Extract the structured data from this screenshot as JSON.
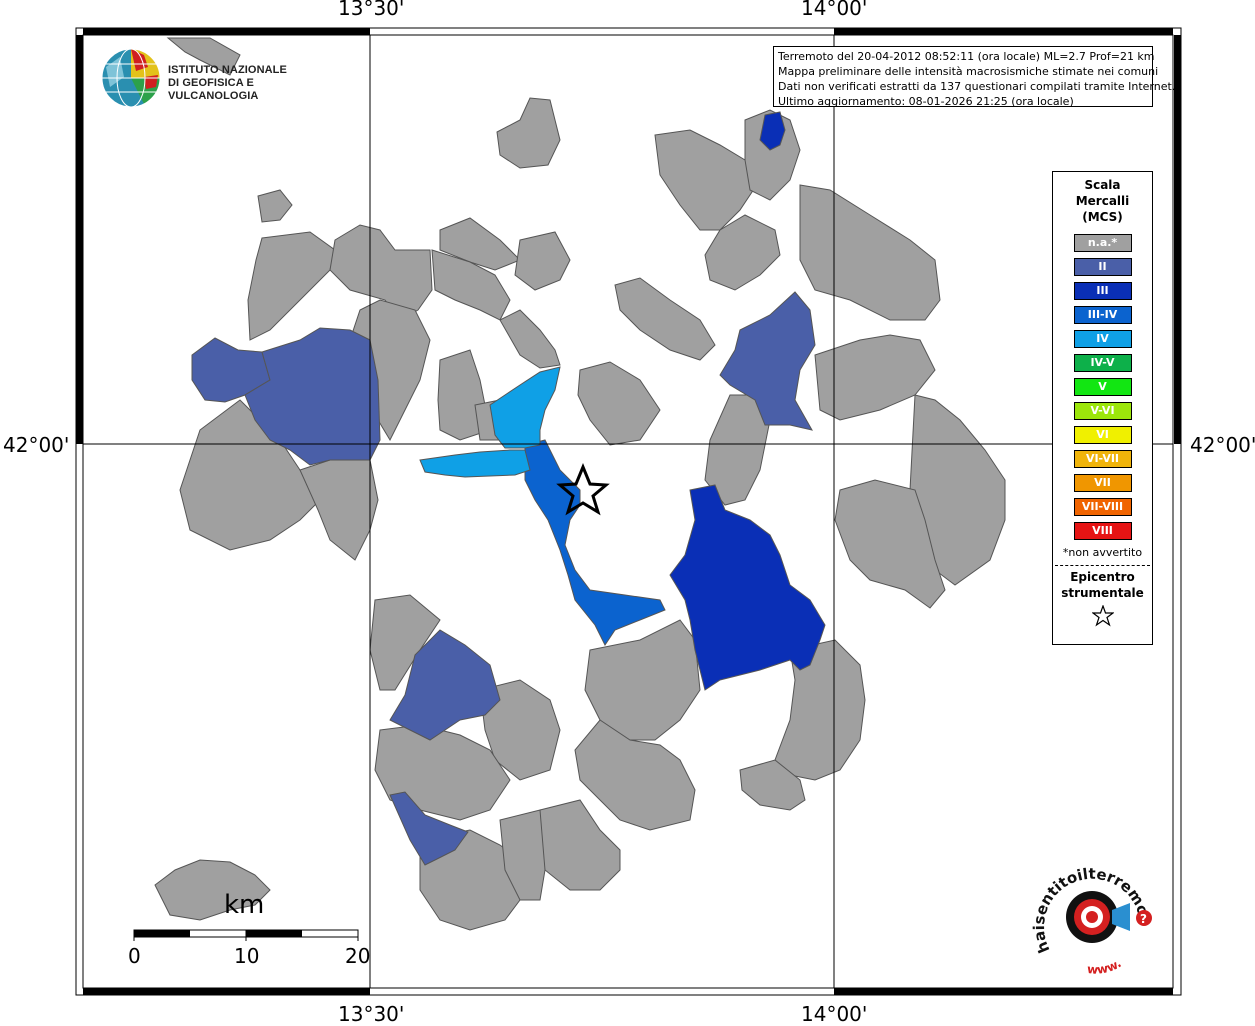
{
  "frame": {
    "top_labels": [
      "13°30'",
      "14°00'"
    ],
    "bottom_labels": [
      "13°30'",
      "14°00'"
    ],
    "left_label": "42°00'",
    "right_label": "42°00'"
  },
  "info": {
    "line1": "Terremoto del 20-04-2012 08:52:11 (ora locale) ML=2.7 Prof=21 km",
    "line2": "Mappa preliminare delle intensità macrosismiche stimate nei comuni",
    "line3": "Dati non verificati estratti da 137 questionari compilati tramite Internet.",
    "line4": "Ultimo aggiornamento: 08-01-2026 21:25 (ora locale)"
  },
  "institute": {
    "line1": "ISTITUTO NAZIONALE",
    "line2": "DI GEOFISICA E VULCANOLOGIA"
  },
  "legend": {
    "title1": "Scala",
    "title2": "Mercalli",
    "title3": "(MCS)",
    "items": [
      {
        "label": "n.a.*",
        "color": "#a0a0a0"
      },
      {
        "label": "II",
        "color": "#4a5fa8"
      },
      {
        "label": "III",
        "color": "#0a2fb6"
      },
      {
        "label": "III-IV",
        "color": "#0b63cf"
      },
      {
        "label": "IV",
        "color": "#0fa0e6"
      },
      {
        "label": "IV-V",
        "color": "#0db04a"
      },
      {
        "label": "V",
        "color": "#12e612"
      },
      {
        "label": "V-VI",
        "color": "#9ce60b"
      },
      {
        "label": "VI",
        "color": "#f0f000"
      },
      {
        "label": "VI-VII",
        "color": "#f0b40a"
      },
      {
        "label": "VII",
        "color": "#f09600"
      },
      {
        "label": "VII-VIII",
        "color": "#f06400"
      },
      {
        "label": "VIII",
        "color": "#e61414"
      }
    ],
    "note": "*non avvertito",
    "epicenter1": "Epicentro",
    "epicenter2": "strumentale"
  },
  "scalebar": {
    "unit": "km",
    "labels": [
      "0",
      "10",
      "20"
    ]
  },
  "branding": {
    "text": "haisentitoilterremoto.it",
    "www": "www."
  },
  "colors": {
    "na": "#a0a0a0",
    "ii": "#4a5fa8",
    "iii": "#0a2fb6",
    "iii_iv": "#0b63cf",
    "iv": "#0fa0e6",
    "border": "#555555",
    "brand_red": "#d42020"
  }
}
